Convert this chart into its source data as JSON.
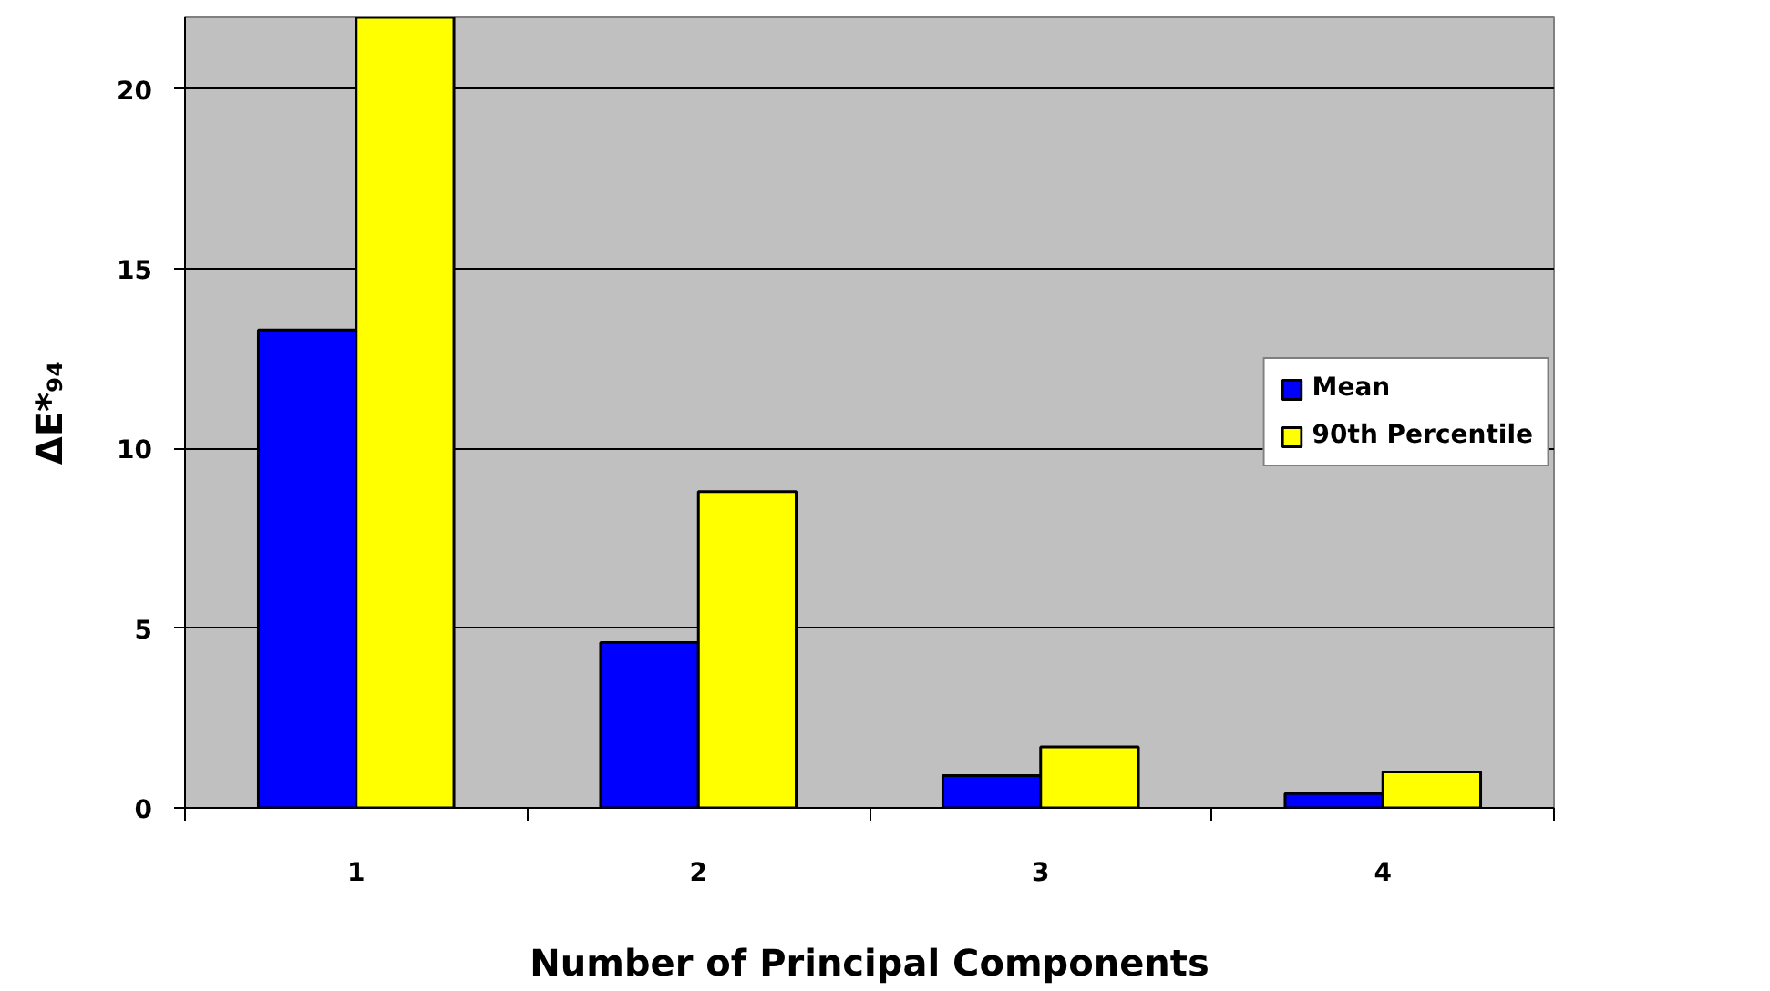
{
  "chart_data": {
    "type": "bar",
    "xlabel": "Number of Principal Components",
    "ylabel": "ΔE*₉₄",
    "categories": [
      "1",
      "2",
      "3",
      "4"
    ],
    "series": [
      {
        "name": "Mean",
        "color": "#0000ff",
        "values": [
          13.3,
          4.6,
          0.9,
          0.4
        ]
      },
      {
        "name": "90th Percentile",
        "color": "#ffff00",
        "values": [
          22,
          8.8,
          1.7,
          1.0
        ]
      }
    ],
    "ylim": [
      0,
      22
    ],
    "yticks": [
      0,
      5,
      10,
      15,
      20
    ],
    "grid": "y",
    "legend": "right"
  }
}
